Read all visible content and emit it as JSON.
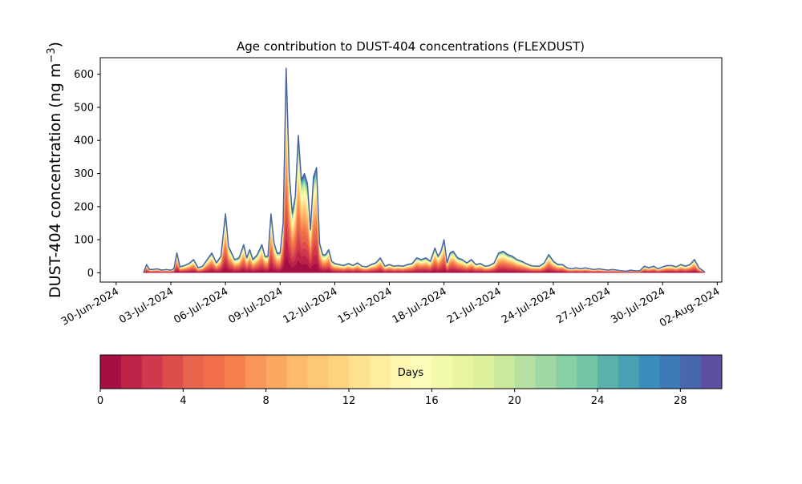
{
  "chart_data": {
    "type": "area",
    "title": "Age contribution to DUST-404 concentrations (FLEXDUST)",
    "ylabel_main": "DUST-404 concentration (ng m",
    "ylabel_unit_exp": "−3",
    "ylabel_close": ")",
    "xlabel": "",
    "ylim": [
      -28,
      650
    ],
    "yticks": [
      0,
      100,
      200,
      300,
      400,
      500,
      600
    ],
    "x_axis": {
      "start": "2024-06-29T03:00",
      "end": "2024-08-02T06:00",
      "tick_labels": [
        "30-Jun-2024",
        "03-Jul-2024",
        "06-Jul-2024",
        "09-Jul-2024",
        "12-Jul-2024",
        "15-Jul-2024",
        "18-Jul-2024",
        "21-Jul-2024",
        "24-Jul-2024",
        "27-Jul-2024",
        "30-Jul-2024",
        "02-Aug-2024"
      ],
      "tick_dates": [
        "2024-06-30",
        "2024-07-03",
        "2024-07-06",
        "2024-07-09",
        "2024-07-12",
        "2024-07-15",
        "2024-07-18",
        "2024-07-21",
        "2024-07-24",
        "2024-07-27",
        "2024-07-30",
        "2024-08-02"
      ]
    },
    "grid": false,
    "total_series": {
      "name": "",
      "points": [
        [
          "2024-07-01T12:00",
          0
        ],
        [
          "2024-07-01T16:00",
          25
        ],
        [
          "2024-07-01T20:00",
          10
        ],
        [
          "2024-07-02T00:00",
          10
        ],
        [
          "2024-07-02T06:00",
          12
        ],
        [
          "2024-07-02T12:00",
          8
        ],
        [
          "2024-07-02T18:00",
          10
        ],
        [
          "2024-07-03T00:00",
          8
        ],
        [
          "2024-07-03T04:00",
          12
        ],
        [
          "2024-07-03T08:00",
          60
        ],
        [
          "2024-07-03T12:00",
          18
        ],
        [
          "2024-07-03T18:00",
          22
        ],
        [
          "2024-07-04T00:00",
          28
        ],
        [
          "2024-07-04T06:00",
          40
        ],
        [
          "2024-07-04T12:00",
          15
        ],
        [
          "2024-07-04T18:00",
          20
        ],
        [
          "2024-07-05T00:00",
          40
        ],
        [
          "2024-07-05T06:00",
          60
        ],
        [
          "2024-07-05T12:00",
          30
        ],
        [
          "2024-07-05T18:00",
          50
        ],
        [
          "2024-07-06T00:00",
          178
        ],
        [
          "2024-07-06T04:00",
          80
        ],
        [
          "2024-07-06T08:00",
          60
        ],
        [
          "2024-07-06T12:00",
          40
        ],
        [
          "2024-07-06T18:00",
          45
        ],
        [
          "2024-07-07T00:00",
          85
        ],
        [
          "2024-07-07T04:00",
          45
        ],
        [
          "2024-07-07T08:00",
          70
        ],
        [
          "2024-07-07T12:00",
          40
        ],
        [
          "2024-07-07T18:00",
          55
        ],
        [
          "2024-07-08T00:00",
          85
        ],
        [
          "2024-07-08T04:00",
          50
        ],
        [
          "2024-07-08T08:00",
          50
        ],
        [
          "2024-07-08T12:00",
          178
        ],
        [
          "2024-07-08T16:00",
          90
        ],
        [
          "2024-07-08T20:00",
          60
        ],
        [
          "2024-07-09T00:00",
          60
        ],
        [
          "2024-07-09T04:00",
          150
        ],
        [
          "2024-07-09T08:00",
          618
        ],
        [
          "2024-07-09T12:00",
          300
        ],
        [
          "2024-07-09T16:00",
          180
        ],
        [
          "2024-07-09T20:00",
          230
        ],
        [
          "2024-07-10T00:00",
          415
        ],
        [
          "2024-07-10T04:00",
          280
        ],
        [
          "2024-07-10T08:00",
          300
        ],
        [
          "2024-07-10T12:00",
          270
        ],
        [
          "2024-07-10T16:00",
          130
        ],
        [
          "2024-07-10T20:00",
          290
        ],
        [
          "2024-07-11T00:00",
          318
        ],
        [
          "2024-07-11T04:00",
          90
        ],
        [
          "2024-07-11T08:00",
          55
        ],
        [
          "2024-07-11T12:00",
          55
        ],
        [
          "2024-07-11T16:00",
          70
        ],
        [
          "2024-07-11T20:00",
          35
        ],
        [
          "2024-07-12T00:00",
          28
        ],
        [
          "2024-07-12T06:00",
          25
        ],
        [
          "2024-07-12T12:00",
          22
        ],
        [
          "2024-07-12T18:00",
          28
        ],
        [
          "2024-07-13T00:00",
          22
        ],
        [
          "2024-07-13T06:00",
          30
        ],
        [
          "2024-07-13T12:00",
          20
        ],
        [
          "2024-07-13T18:00",
          18
        ],
        [
          "2024-07-14T00:00",
          25
        ],
        [
          "2024-07-14T06:00",
          30
        ],
        [
          "2024-07-14T12:00",
          45
        ],
        [
          "2024-07-14T18:00",
          20
        ],
        [
          "2024-07-15T00:00",
          25
        ],
        [
          "2024-07-15T06:00",
          20
        ],
        [
          "2024-07-15T12:00",
          22
        ],
        [
          "2024-07-15T18:00",
          20
        ],
        [
          "2024-07-16T00:00",
          25
        ],
        [
          "2024-07-16T06:00",
          28
        ],
        [
          "2024-07-16T12:00",
          45
        ],
        [
          "2024-07-16T18:00",
          40
        ],
        [
          "2024-07-17T00:00",
          45
        ],
        [
          "2024-07-17T06:00",
          35
        ],
        [
          "2024-07-17T12:00",
          75
        ],
        [
          "2024-07-17T16:00",
          50
        ],
        [
          "2024-07-17T20:00",
          65
        ],
        [
          "2024-07-18T00:00",
          100
        ],
        [
          "2024-07-18T04:00",
          30
        ],
        [
          "2024-07-18T08:00",
          60
        ],
        [
          "2024-07-18T12:00",
          65
        ],
        [
          "2024-07-18T18:00",
          45
        ],
        [
          "2024-07-19T00:00",
          40
        ],
        [
          "2024-07-19T06:00",
          30
        ],
        [
          "2024-07-19T12:00",
          40
        ],
        [
          "2024-07-19T18:00",
          25
        ],
        [
          "2024-07-20T00:00",
          28
        ],
        [
          "2024-07-20T06:00",
          20
        ],
        [
          "2024-07-20T12:00",
          22
        ],
        [
          "2024-07-20T18:00",
          30
        ],
        [
          "2024-07-21T00:00",
          60
        ],
        [
          "2024-07-21T06:00",
          65
        ],
        [
          "2024-07-21T12:00",
          55
        ],
        [
          "2024-07-21T18:00",
          50
        ],
        [
          "2024-07-22T00:00",
          40
        ],
        [
          "2024-07-22T06:00",
          35
        ],
        [
          "2024-07-22T12:00",
          28
        ],
        [
          "2024-07-22T18:00",
          22
        ],
        [
          "2024-07-23T00:00",
          20
        ],
        [
          "2024-07-23T06:00",
          20
        ],
        [
          "2024-07-23T12:00",
          30
        ],
        [
          "2024-07-23T18:00",
          55
        ],
        [
          "2024-07-24T00:00",
          35
        ],
        [
          "2024-07-24T06:00",
          25
        ],
        [
          "2024-07-24T12:00",
          25
        ],
        [
          "2024-07-24T18:00",
          15
        ],
        [
          "2024-07-25T00:00",
          12
        ],
        [
          "2024-07-25T06:00",
          15
        ],
        [
          "2024-07-25T12:00",
          12
        ],
        [
          "2024-07-25T18:00",
          15
        ],
        [
          "2024-07-26T00:00",
          12
        ],
        [
          "2024-07-26T06:00",
          10
        ],
        [
          "2024-07-26T12:00",
          12
        ],
        [
          "2024-07-26T18:00",
          10
        ],
        [
          "2024-07-27T00:00",
          8
        ],
        [
          "2024-07-27T06:00",
          10
        ],
        [
          "2024-07-27T12:00",
          8
        ],
        [
          "2024-07-27T18:00",
          6
        ],
        [
          "2024-07-28T00:00",
          5
        ],
        [
          "2024-07-28T06:00",
          8
        ],
        [
          "2024-07-28T12:00",
          6
        ],
        [
          "2024-07-28T18:00",
          6
        ],
        [
          "2024-07-29T00:00",
          20
        ],
        [
          "2024-07-29T06:00",
          15
        ],
        [
          "2024-07-29T12:00",
          20
        ],
        [
          "2024-07-29T18:00",
          12
        ],
        [
          "2024-07-30T00:00",
          18
        ],
        [
          "2024-07-30T06:00",
          22
        ],
        [
          "2024-07-30T12:00",
          22
        ],
        [
          "2024-07-30T18:00",
          18
        ],
        [
          "2024-07-31T00:00",
          25
        ],
        [
          "2024-07-31T06:00",
          20
        ],
        [
          "2024-07-31T12:00",
          25
        ],
        [
          "2024-07-31T18:00",
          40
        ],
        [
          "2024-08-01T00:00",
          15
        ],
        [
          "2024-08-01T06:00",
          5
        ],
        [
          "2024-08-01T08:00",
          2
        ]
      ]
    },
    "colorbar": {
      "label": "Days",
      "range": [
        0,
        30
      ],
      "tick_values": [
        0,
        4,
        8,
        12,
        16,
        20,
        24,
        28
      ],
      "tick_labels": [
        "0",
        "4",
        "8",
        "12",
        "16",
        "20",
        "24",
        "28"
      ],
      "colors": [
        "#a50f44",
        "#bc2347",
        "#cf384d",
        "#dc4d4c",
        "#e8634b",
        "#f16e4b",
        "#f7814c",
        "#f99558",
        "#fca863",
        "#fdb96e",
        "#fdc776",
        "#fed480",
        "#fee18e",
        "#feec9f",
        "#fff6b0",
        "#fbfdbb",
        "#f3faac",
        "#e9f59e",
        "#ddf09a",
        "#cbe99d",
        "#b6e1a2",
        "#9fd8a4",
        "#87cfa4",
        "#72c6a5",
        "#5bb1a9",
        "#47a0b4",
        "#3b8dbb",
        "#3d7ab8",
        "#4867ae",
        "#5e4fa2"
      ]
    }
  }
}
